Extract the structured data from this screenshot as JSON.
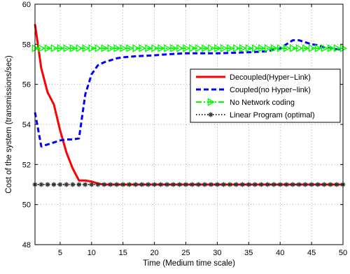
{
  "chart_data": {
    "type": "line",
    "xlabel": "Time (Medium time scale)",
    "ylabel": "Cost of the system (transmissions/sec)",
    "xlim": [
      1,
      50
    ],
    "ylim": [
      48,
      60
    ],
    "xticks": [
      5,
      10,
      15,
      20,
      25,
      30,
      35,
      40,
      45,
      50
    ],
    "yticks": [
      48,
      50,
      52,
      54,
      56,
      58,
      60
    ],
    "grid": true,
    "legend_position": "center-right",
    "series": [
      {
        "name": "Decoupled(Hyper−Link)",
        "color": "#ff0000",
        "style": "solid",
        "x": [
          1,
          2,
          3,
          4,
          5,
          6,
          7,
          8,
          9,
          10,
          11,
          12,
          15,
          20,
          25,
          30,
          35,
          40,
          45,
          50
        ],
        "y": [
          59.0,
          56.8,
          55.6,
          55.0,
          53.7,
          52.6,
          51.8,
          51.2,
          51.2,
          51.15,
          51.05,
          51.0,
          51.0,
          51.0,
          51.0,
          51.0,
          51.0,
          51.0,
          51.0,
          51.0
        ]
      },
      {
        "name": "Coupled(no Hyper−link)",
        "color": "#0000ff",
        "style": "dashed",
        "x": [
          1,
          2,
          3,
          4,
          5,
          6,
          7,
          8,
          9,
          10,
          11,
          12,
          13,
          14,
          15,
          17,
          20,
          22,
          25,
          30,
          35,
          38,
          40,
          41,
          42,
          43,
          44,
          45,
          46,
          47,
          48,
          49,
          50
        ],
        "y": [
          54.6,
          52.9,
          53.0,
          53.1,
          53.2,
          53.25,
          53.25,
          53.3,
          55.5,
          56.5,
          56.95,
          57.1,
          57.2,
          57.3,
          57.35,
          57.4,
          57.45,
          57.5,
          57.55,
          57.55,
          57.6,
          57.65,
          57.8,
          58.0,
          58.2,
          58.2,
          58.1,
          58.0,
          57.95,
          57.85,
          57.8,
          57.75,
          57.75
        ]
      },
      {
        "name": "No Network coding",
        "color": "#00ff00",
        "style": "dash-dot",
        "marker": "triangle-right",
        "x": [
          1,
          2,
          3,
          4,
          5,
          6,
          7,
          8,
          9,
          10,
          11,
          12,
          13,
          14,
          15,
          16,
          17,
          18,
          19,
          20,
          21,
          22,
          23,
          24,
          25,
          26,
          27,
          28,
          29,
          30,
          31,
          32,
          33,
          34,
          35,
          36,
          37,
          38,
          39,
          40,
          41,
          42,
          43,
          44,
          45,
          46,
          47,
          48,
          49,
          50
        ],
        "y": [
          57.8,
          57.8,
          57.8,
          57.8,
          57.8,
          57.8,
          57.8,
          57.8,
          57.8,
          57.8,
          57.8,
          57.8,
          57.8,
          57.8,
          57.8,
          57.8,
          57.8,
          57.8,
          57.8,
          57.8,
          57.8,
          57.8,
          57.8,
          57.8,
          57.8,
          57.8,
          57.8,
          57.8,
          57.8,
          57.8,
          57.8,
          57.8,
          57.8,
          57.8,
          57.8,
          57.8,
          57.8,
          57.8,
          57.8,
          57.8,
          57.8,
          57.8,
          57.8,
          57.8,
          57.8,
          57.8,
          57.8,
          57.8,
          57.8,
          57.8
        ]
      },
      {
        "name": "Linear Program (optimal)",
        "color": "#333333",
        "style": "dotted",
        "marker": "star",
        "x": [
          1,
          2,
          3,
          4,
          5,
          6,
          7,
          8,
          9,
          10,
          11,
          12,
          13,
          14,
          15,
          16,
          17,
          18,
          19,
          20,
          21,
          22,
          23,
          24,
          25,
          26,
          27,
          28,
          29,
          30,
          31,
          32,
          33,
          34,
          35,
          36,
          37,
          38,
          39,
          40,
          41,
          42,
          43,
          44,
          45,
          46,
          47,
          48,
          49,
          50
        ],
        "y": [
          51.0,
          51.0,
          51.0,
          51.0,
          51.0,
          51.0,
          51.0,
          51.0,
          51.0,
          51.0,
          51.0,
          51.0,
          51.0,
          51.0,
          51.0,
          51.0,
          51.0,
          51.0,
          51.0,
          51.0,
          51.0,
          51.0,
          51.0,
          51.0,
          51.0,
          51.0,
          51.0,
          51.0,
          51.0,
          51.0,
          51.0,
          51.0,
          51.0,
          51.0,
          51.0,
          51.0,
          51.0,
          51.0,
          51.0,
          51.0,
          51.0,
          51.0,
          51.0,
          51.0,
          51.0,
          51.0,
          51.0,
          51.0,
          51.0,
          51.0
        ]
      }
    ]
  }
}
